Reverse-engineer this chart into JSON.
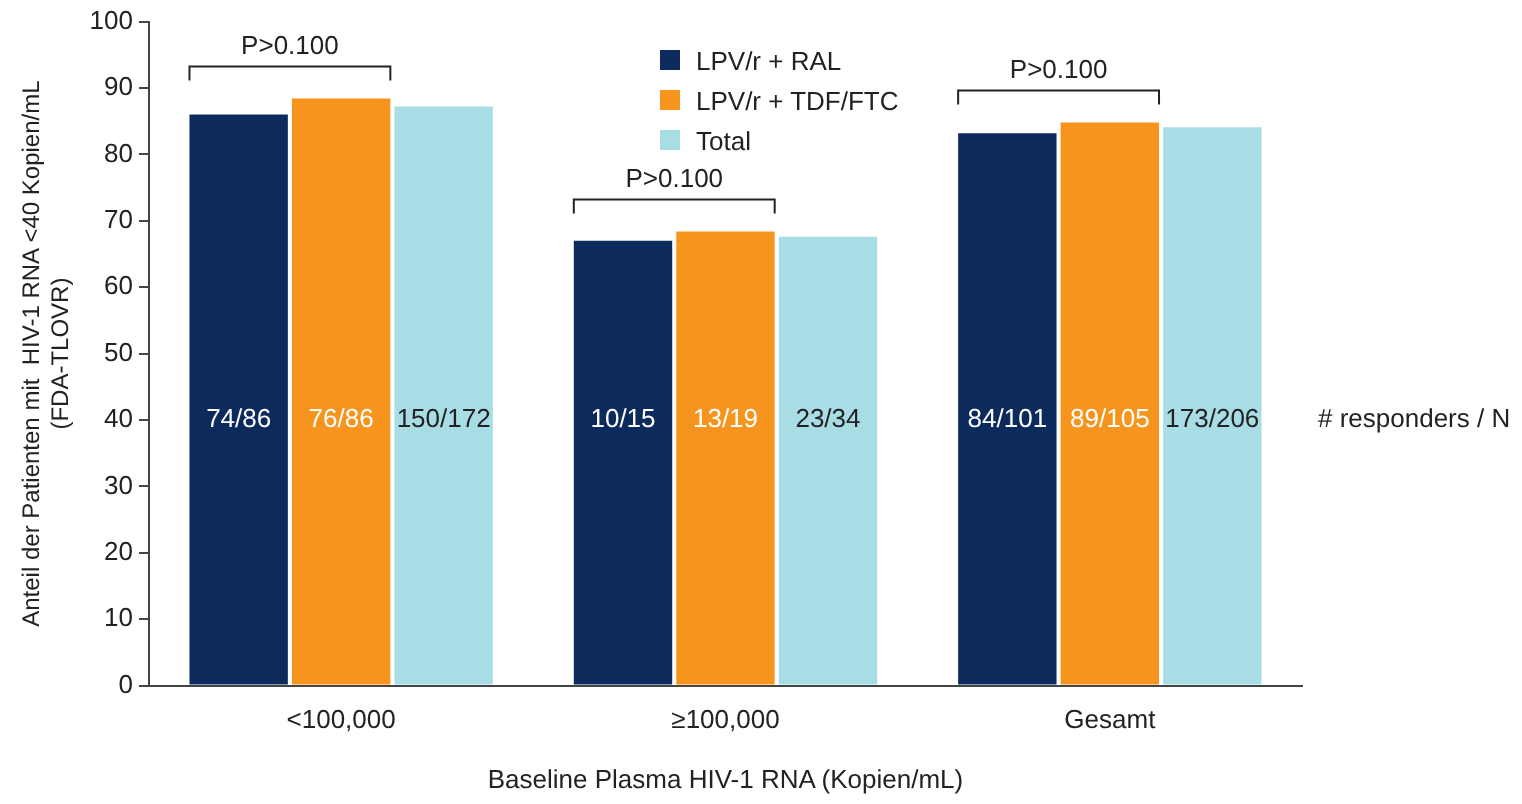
{
  "chart_data": {
    "type": "bar",
    "xlabel": "Baseline Plasma HIV-1 RNA (Kopien/mL)",
    "ylabel": "Anteil der Patienten mit  HIV-1 RNA <40 Kopien/mL\n(FDA-TLOVR)",
    "categories": [
      "<100,000",
      "≥100,000",
      "Gesamt"
    ],
    "series": [
      {
        "name": "LPV/r + RAL",
        "color": "#0d2a5c",
        "values": [
          86,
          67,
          83.2
        ],
        "value_labels": [
          "74/86",
          "10/15",
          "84/101"
        ]
      },
      {
        "name": "LPV/r + TDF/FTC",
        "color": "#f7941d",
        "values": [
          88.4,
          68.4,
          84.8
        ],
        "value_labels": [
          "76/86",
          "13/19",
          "89/105"
        ]
      },
      {
        "name": "Total",
        "color": "#a8dde6",
        "values": [
          87.2,
          67.6,
          84.1
        ],
        "value_labels": [
          "150/172",
          "23/34",
          "173/206"
        ]
      }
    ],
    "ylim": [
      0,
      100
    ],
    "yticks": [
      0,
      10,
      20,
      30,
      40,
      50,
      60,
      70,
      80,
      90,
      100
    ],
    "grid": false,
    "legend": "top",
    "annotations": [
      "P>0.100",
      "P>0.100",
      "P>0.100",
      "# responders / N"
    ]
  }
}
